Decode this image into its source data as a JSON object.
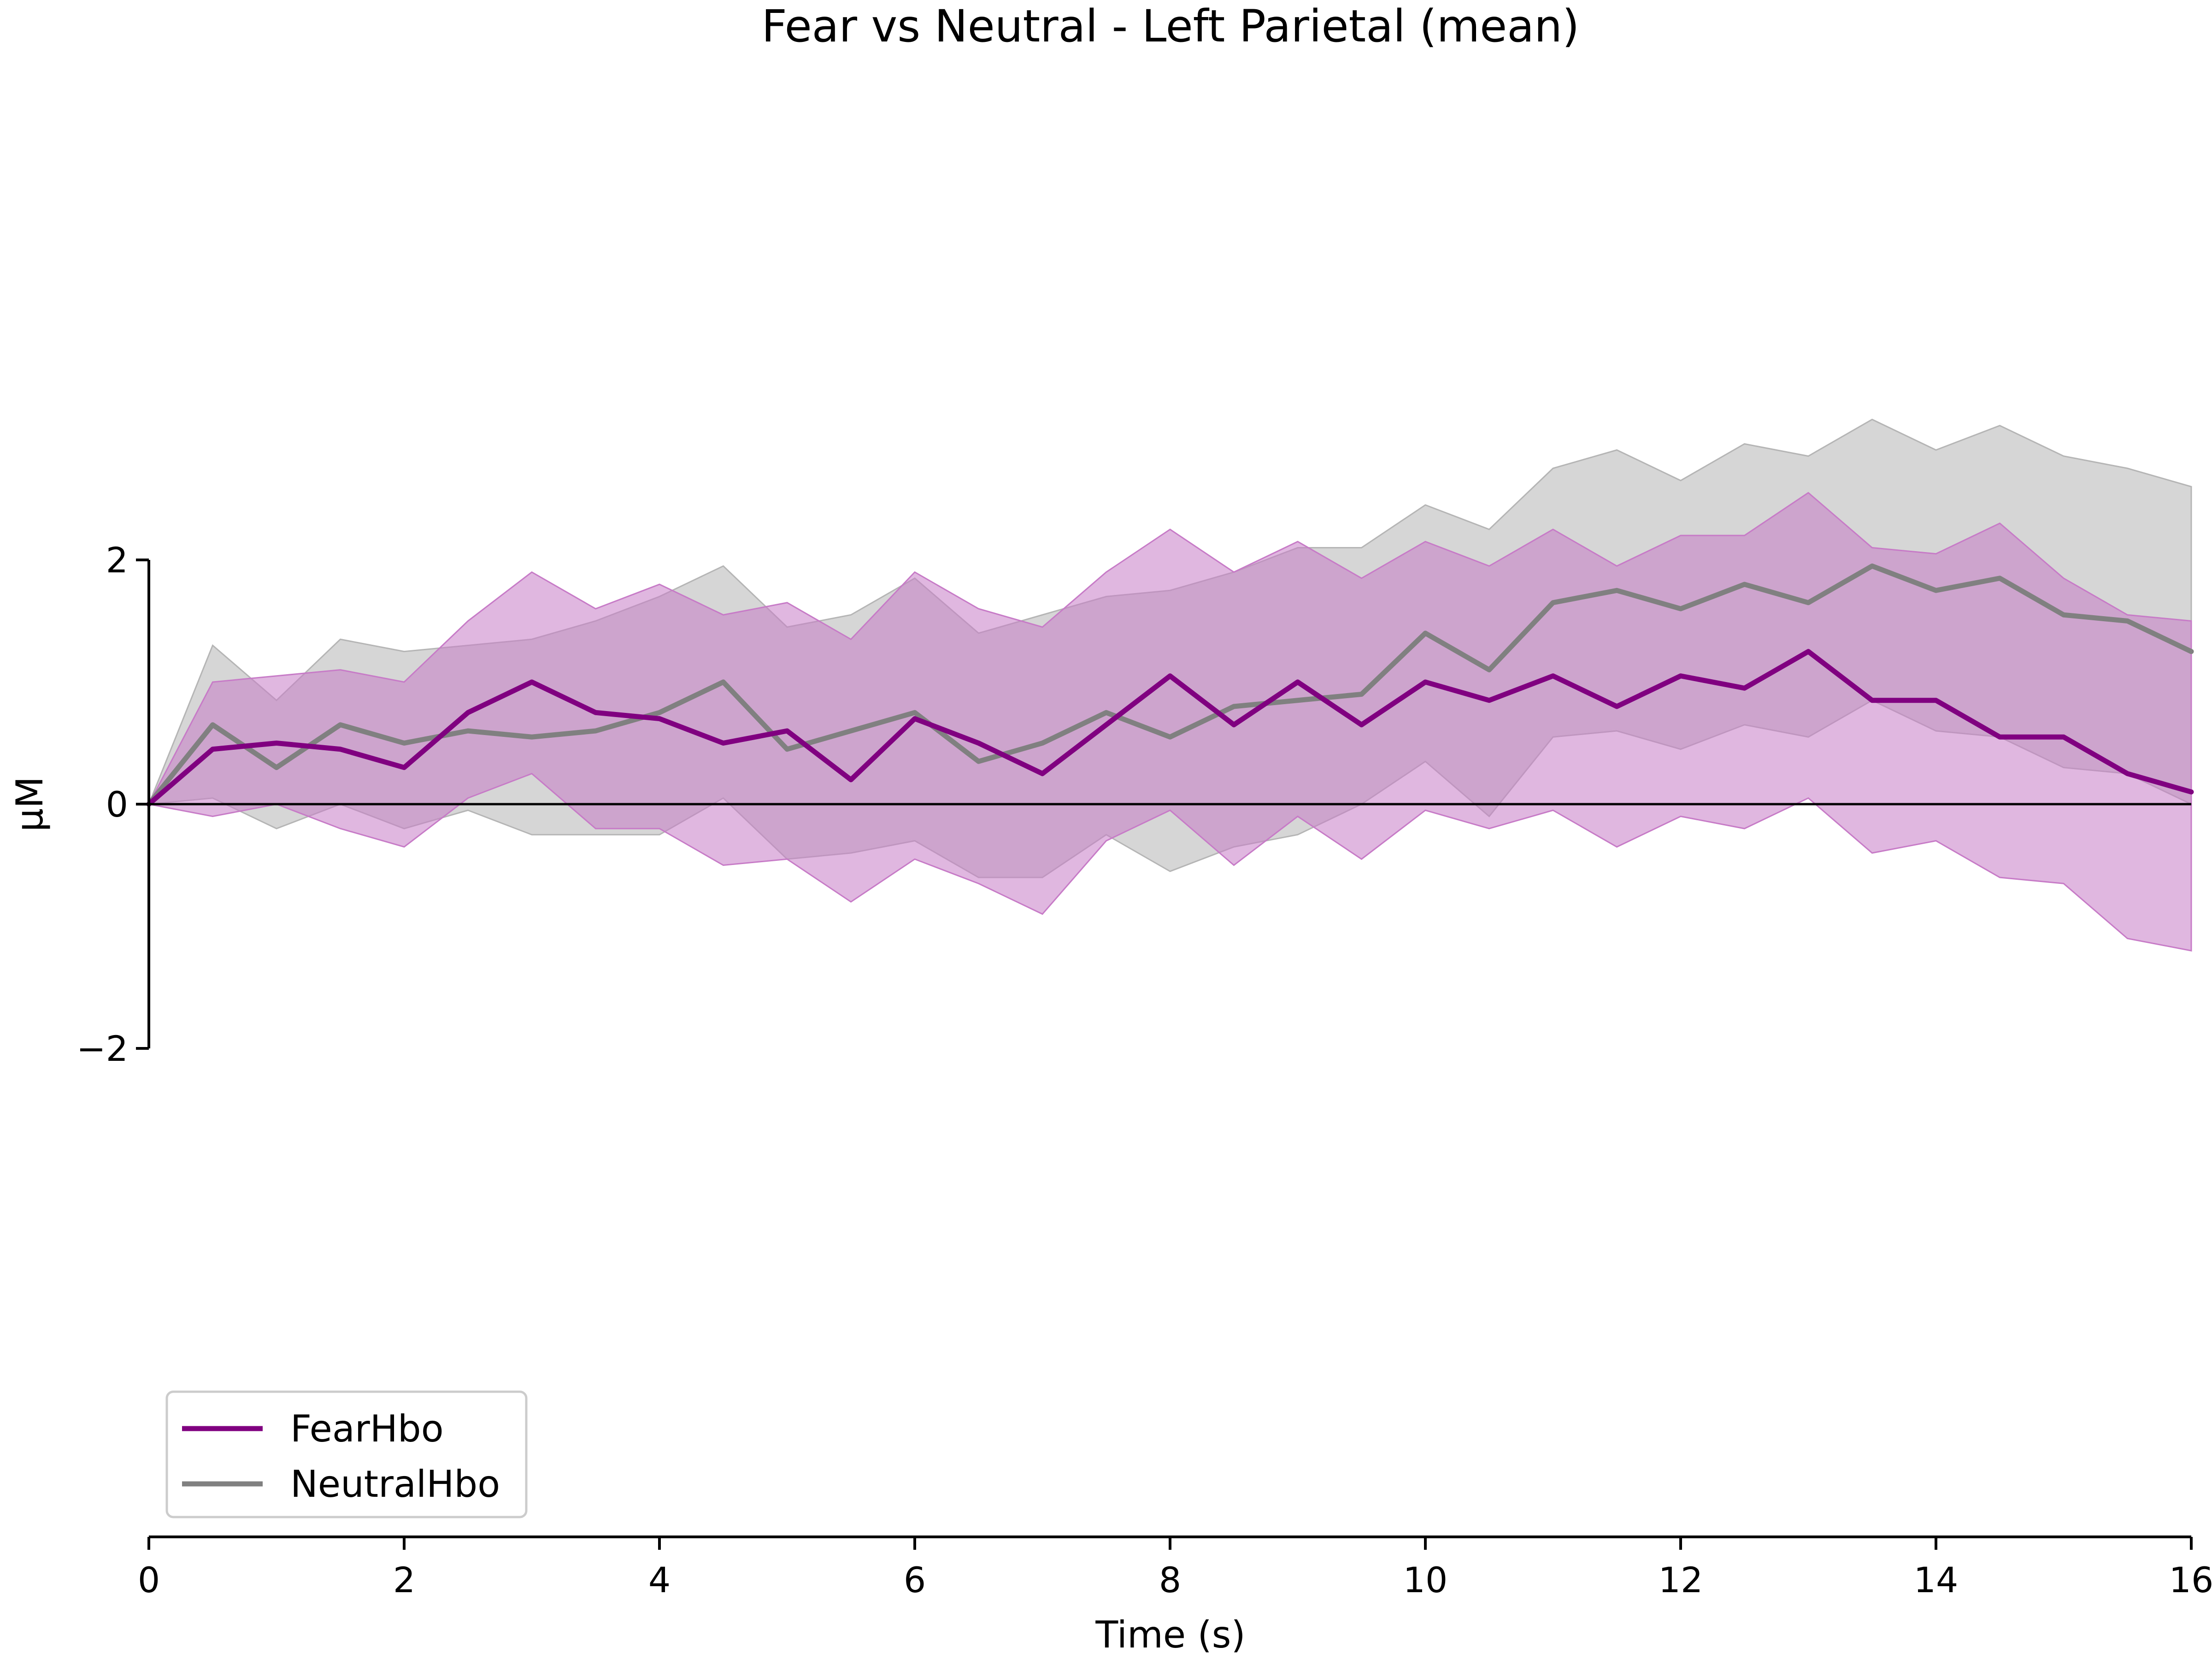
{
  "chart_data": {
    "type": "line",
    "title": "Fear vs Neutral - Left Parietal (mean)",
    "xlabel": "Time (s)",
    "ylabel": "µM",
    "xlim": [
      0,
      16
    ],
    "ylim": [
      -6,
      6
    ],
    "x_ticks": [
      0,
      2,
      4,
      6,
      8,
      10,
      12,
      14,
      16
    ],
    "x_tick_labels": [
      "0",
      "2",
      "4",
      "6",
      "8",
      "10",
      "12",
      "14",
      "16"
    ],
    "y_ticks": [
      -2,
      0,
      2
    ],
    "y_tick_labels": [
      "−2",
      "0",
      "2"
    ],
    "grid": false,
    "legend_position": "lower-left",
    "zero_line": true,
    "series": [
      {
        "name": "FearHbo",
        "color": "#800080",
        "band_color": "#c77bc7",
        "x": [
          0,
          0.5,
          1,
          1.5,
          2,
          2.5,
          3,
          3.5,
          4,
          4.5,
          5,
          5.5,
          6,
          6.5,
          7,
          7.5,
          8,
          8.5,
          9,
          9.5,
          10,
          10.5,
          11,
          11.5,
          12,
          12.5,
          13,
          13.5,
          14,
          14.5,
          15,
          15.5,
          16
        ],
        "values": [
          0,
          0.45,
          0.5,
          0.45,
          0.3,
          0.75,
          1.0,
          0.75,
          0.7,
          0.5,
          0.6,
          0.2,
          0.7,
          0.5,
          0.25,
          0.65,
          1.05,
          0.65,
          1.0,
          0.65,
          1.0,
          0.85,
          1.05,
          0.8,
          1.05,
          0.95,
          1.25,
          0.85,
          0.85,
          0.55,
          0.55,
          0.25,
          0.1
        ],
        "lower": [
          0,
          -0.1,
          0.0,
          -0.2,
          -0.35,
          0.05,
          0.25,
          -0.2,
          -0.2,
          -0.5,
          -0.45,
          -0.8,
          -0.45,
          -0.65,
          -0.9,
          -0.3,
          -0.05,
          -0.5,
          -0.1,
          -0.45,
          -0.05,
          -0.2,
          -0.05,
          -0.35,
          -0.1,
          -0.2,
          0.05,
          -0.4,
          -0.3,
          -0.6,
          -0.65,
          -1.1,
          -1.2
        ],
        "upper": [
          0,
          1.0,
          1.05,
          1.1,
          1.0,
          1.5,
          1.9,
          1.6,
          1.8,
          1.55,
          1.65,
          1.35,
          1.9,
          1.6,
          1.45,
          1.9,
          2.25,
          1.9,
          2.15,
          1.85,
          2.15,
          1.95,
          2.25,
          1.95,
          2.2,
          2.2,
          2.55,
          2.1,
          2.05,
          2.3,
          1.85,
          1.55,
          1.5
        ]
      },
      {
        "name": "NeutralHbo",
        "color": "#808080",
        "band_color": "#b5b5b5",
        "x": [
          0,
          0.5,
          1,
          1.5,
          2,
          2.5,
          3,
          3.5,
          4,
          4.5,
          5,
          5.5,
          6,
          6.5,
          7,
          7.5,
          8,
          8.5,
          9,
          9.5,
          10,
          10.5,
          11,
          11.5,
          12,
          12.5,
          13,
          13.5,
          14,
          14.5,
          15,
          15.5,
          16
        ],
        "values": [
          0,
          0.65,
          0.3,
          0.65,
          0.5,
          0.6,
          0.55,
          0.6,
          0.75,
          1.0,
          0.45,
          0.6,
          0.75,
          0.35,
          0.5,
          0.75,
          0.55,
          0.8,
          0.85,
          0.9,
          1.4,
          1.1,
          1.65,
          1.75,
          1.6,
          1.8,
          1.65,
          1.95,
          1.75,
          1.85,
          1.55,
          1.5,
          1.25
        ],
        "lower": [
          0,
          0.05,
          -0.2,
          0.0,
          -0.2,
          -0.05,
          -0.25,
          -0.25,
          -0.25,
          0.05,
          -0.45,
          -0.4,
          -0.3,
          -0.6,
          -0.6,
          -0.25,
          -0.55,
          -0.35,
          -0.25,
          0.0,
          0.35,
          -0.1,
          0.55,
          0.6,
          0.45,
          0.65,
          0.55,
          0.85,
          0.6,
          0.55,
          0.3,
          0.25,
          0.0
        ],
        "upper": [
          0,
          1.3,
          0.85,
          1.35,
          1.25,
          1.3,
          1.35,
          1.5,
          1.7,
          1.95,
          1.45,
          1.55,
          1.85,
          1.4,
          1.55,
          1.7,
          1.75,
          1.9,
          2.1,
          2.1,
          2.45,
          2.25,
          2.75,
          2.9,
          2.65,
          2.95,
          2.85,
          3.15,
          2.9,
          3.1,
          2.85,
          2.75,
          2.6
        ]
      }
    ]
  }
}
